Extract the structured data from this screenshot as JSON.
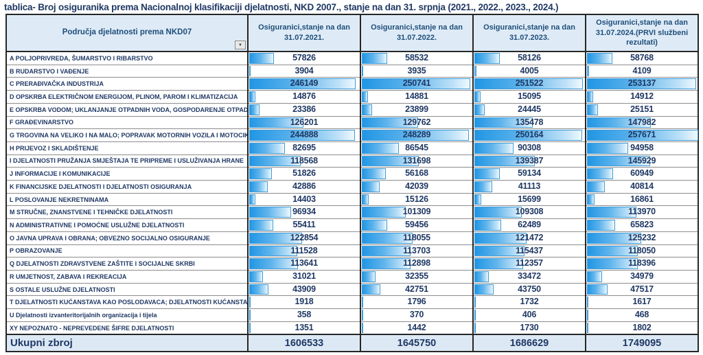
{
  "title": "tablica- Broj osiguranika prema Nacionalnoj klasifikaciji djelatnosti, NKD 2007., stanje na dan 31. srpnja (2021., 2022., 2023., 2024.)",
  "header": {
    "label_column": "Područja djelatnosti prema NKD07"
  },
  "icons": {
    "filter_dropdown": "▼"
  },
  "colors": {
    "text_navy": "#1F3864",
    "header_text": "#1F4E79",
    "header_bg": "#DEEBF7",
    "total_bg": "#DCE9F5",
    "bar_fill": "#2196E4",
    "bar_border": "#3D9BD9",
    "grid_line": "#8C8C8C",
    "frame": "#262626"
  },
  "chart_data": {
    "type": "table",
    "title": "Broj osiguranika prema Nacionalnoj klasifikaciji djelatnosti, NKD 2007., stanje na dan 31. srpnja (2021., 2022., 2023., 2024.)",
    "bar_style": "gradient data bars, left-aligned, scaled to max value",
    "bar_max": 257671,
    "columns": [
      "Osiguranici,stanje na dan 31.07.2021.",
      "Osiguranici,stanje na dan 31.07.2022.",
      "Osiguranici,stanje na dan 31.07.2023.",
      "Osiguranici,stanje na dan 31.07.2024.(PRVI službeni rezultati)"
    ],
    "rows": [
      {
        "label": "A POLJOPRIVREDA, ŠUMARSTVO I RIBARSTVO",
        "values": [
          57826,
          58532,
          58126,
          58768
        ]
      },
      {
        "label": "B RUDARSTVO I VAĐENJE",
        "values": [
          3904,
          3935,
          4005,
          4109
        ]
      },
      {
        "label": "C PRERAĐIVAČKA INDUSTRIJA",
        "values": [
          246149,
          250741,
          251522,
          253137
        ]
      },
      {
        "label": "D OPSKRBA ELEKTRIČNOM ENERGIJOM, PLINOM, PAROM I KLIMATIZACIJA",
        "values": [
          14876,
          14881,
          15095,
          14912
        ]
      },
      {
        "label": "E OPSKRBA VODOM; UKLANJANJE OTPADNIH VODA, GOSPODARENJE OTPADOM",
        "values": [
          23386,
          23899,
          24445,
          25151
        ]
      },
      {
        "label": "F GRAĐEVINARSTVO",
        "values": [
          126201,
          129762,
          135478,
          147982
        ]
      },
      {
        "label": "G TRGOVINA NA VELIKO I NA MALO; POPRAVAK MOTORNIH VOZILA I MOTOCIKALA",
        "values": [
          244888,
          248289,
          250164,
          257671
        ]
      },
      {
        "label": "H PRIJEVOZ I SKLADIŠTENJE",
        "values": [
          82695,
          86545,
          90308,
          94958
        ]
      },
      {
        "label": "I DJELATNOSTI PRUŽANJA SMJEŠTAJA TE PRIPREME I USLUŽIVANJA HRANE",
        "values": [
          118568,
          131698,
          139387,
          145929
        ]
      },
      {
        "label": "J INFORMACIJE I KOMUNIKACIJE",
        "values": [
          51826,
          56168,
          59134,
          60949
        ]
      },
      {
        "label": "K FINANCIJSKE DJELATNOSTI I DJELATNOSTI OSIGURANJA",
        "values": [
          42886,
          42039,
          41113,
          40814
        ]
      },
      {
        "label": "L POSLOVANJE NEKRETNINAMA",
        "values": [
          14403,
          15126,
          15699,
          16861
        ]
      },
      {
        "label": "M STRUČNE, ZNANSTVENE I TEHNIČKE DJELATNOSTI",
        "values": [
          96934,
          101309,
          109308,
          113970
        ]
      },
      {
        "label": "N ADMINISTRATIVNE I POMOĆNE USLUŽNE DJELATNOSTI",
        "values": [
          55411,
          59456,
          62489,
          65823
        ]
      },
      {
        "label": "O JAVNA UPRAVA I OBRANA; OBVEZNO SOCIJALNO OSIGURANJE",
        "values": [
          122854,
          118055,
          121472,
          125232
        ]
      },
      {
        "label": "P OBRAZOVANJE",
        "values": [
          111528,
          113703,
          115437,
          118050
        ]
      },
      {
        "label": "Q DJELATNOSTI ZDRAVSTVENE ZAŠTITE I SOCIJALNE SKRBI",
        "values": [
          113641,
          112898,
          112357,
          118396
        ]
      },
      {
        "label": "R UMJETNOST, ZABAVA I REKREACIJA",
        "values": [
          31021,
          32355,
          33472,
          34979
        ]
      },
      {
        "label": "S OSTALE USLUŽNE DJELATNOSTI",
        "values": [
          43909,
          42751,
          43750,
          47517
        ]
      },
      {
        "label": "T DJELATNOSTI KUĆANSTAVA KAO POSLODAVACA; DJELATNOSTI KUĆANSTAVA...",
        "values": [
          1918,
          1796,
          1732,
          1617
        ]
      },
      {
        "label": "U Djelatnosti izvanteritorijalnih organizacija i tijela",
        "values": [
          358,
          370,
          406,
          468
        ]
      },
      {
        "label": "XY NEPOZNATO - NEPREVEDENE ŠIFRE DJELATNOSTI",
        "values": [
          1351,
          1442,
          1730,
          1802
        ]
      }
    ],
    "total_row": {
      "label": "Ukupni zbroj",
      "values": [
        1606533,
        1645750,
        1686629,
        1749095
      ]
    }
  }
}
